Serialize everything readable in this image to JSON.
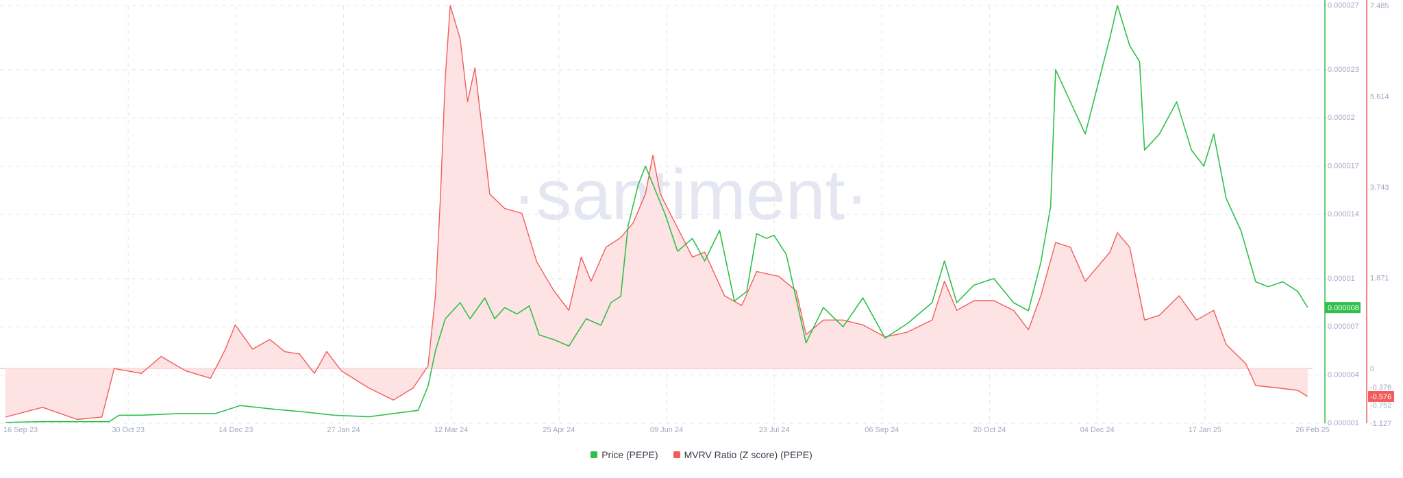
{
  "colors": {
    "price": "#2ec04a",
    "mvrv": "#f25c5c",
    "mvrv_fill": "#fde3e3",
    "grid": "#e3e5ec",
    "tick": "#9fa8c2",
    "watermark": "#e4e6f1"
  },
  "watermark": "·santiment·",
  "price_badge": "0.000008",
  "mvrv_badge": "-0.576",
  "legend": [
    {
      "label": "Price (PEPE)",
      "color": "#2ec04a"
    },
    {
      "label": "MVRV Ratio (Z score) (PEPE)",
      "color": "#f25c5c"
    }
  ],
  "chart_data": {
    "type": "line",
    "title": "",
    "xlabel": "",
    "x_ticks": [
      "16 Sep 23",
      "30 Oct 23",
      "14 Dec 23",
      "27 Jan 24",
      "12 Mar 24",
      "25 Apr 24",
      "09 Jun 24",
      "23 Jul 24",
      "06 Sep 24",
      "20 Oct 24",
      "04 Dec 24",
      "17 Jan 25",
      "26 Feb 25"
    ],
    "x_range": [
      "2023-09-16",
      "2025-02-26"
    ],
    "y_left": {
      "label": "Price (PEPE)",
      "ticks": [
        "0.000027",
        "0.000023",
        "0.00002",
        "0.000017",
        "0.000014",
        "0.00001",
        "0.000007",
        "0.000004",
        "0.000001"
      ],
      "range": [
        1e-06,
        2.7e-05
      ]
    },
    "y_right": {
      "label": "MVRV Ratio (Z score) (PEPE)",
      "ticks": [
        "7.485",
        "5.614",
        "3.743",
        "1.871",
        "0",
        "-0.376",
        "-0.752",
        "-1.127"
      ],
      "range": [
        -1.127,
        7.485
      ]
    },
    "grid": true,
    "legend_position": "bottom",
    "series": [
      {
        "name": "Price (PEPE)",
        "axis": "left",
        "points": [
          [
            "2023-09-16",
            1.05e-06
          ],
          [
            "2023-10-01",
            1.1e-06
          ],
          [
            "2023-10-15",
            1.1e-06
          ],
          [
            "2023-10-28",
            1.1e-06
          ],
          [
            "2023-11-01",
            1.5e-06
          ],
          [
            "2023-11-10",
            1.5e-06
          ],
          [
            "2023-11-25",
            1.6e-06
          ],
          [
            "2023-12-10",
            1.6e-06
          ],
          [
            "2023-12-20",
            2.1e-06
          ],
          [
            "2024-01-01",
            1.9e-06
          ],
          [
            "2024-01-15",
            1.7e-06
          ],
          [
            "2024-01-27",
            1.5e-06
          ],
          [
            "2024-02-10",
            1.4e-06
          ],
          [
            "2024-02-25",
            1.7e-06
          ],
          [
            "2024-03-01",
            1.8e-06
          ],
          [
            "2024-03-05",
            3.3e-06
          ],
          [
            "2024-03-08",
            5.5e-06
          ],
          [
            "2024-03-12",
            7.5e-06
          ],
          [
            "2024-03-18",
            8.5e-06
          ],
          [
            "2024-03-22",
            7.5e-06
          ],
          [
            "2024-03-28",
            8.8e-06
          ],
          [
            "2024-04-01",
            7.5e-06
          ],
          [
            "2024-04-05",
            8.2e-06
          ],
          [
            "2024-04-10",
            7.8e-06
          ],
          [
            "2024-04-15",
            8.3e-06
          ],
          [
            "2024-04-19",
            6.5e-06
          ],
          [
            "2024-04-25",
            6.2e-06
          ],
          [
            "2024-05-01",
            5.8e-06
          ],
          [
            "2024-05-08",
            7.5e-06
          ],
          [
            "2024-05-14",
            7.1e-06
          ],
          [
            "2024-05-18",
            8.5e-06
          ],
          [
            "2024-05-22",
            8.9e-06
          ],
          [
            "2024-05-25",
            1.33e-05
          ],
          [
            "2024-05-29",
            1.58e-05
          ],
          [
            "2024-06-01",
            1.7e-05
          ],
          [
            "2024-06-05",
            1.55e-05
          ],
          [
            "2024-06-09",
            1.4e-05
          ],
          [
            "2024-06-14",
            1.17e-05
          ],
          [
            "2024-06-20",
            1.25e-05
          ],
          [
            "2024-06-25",
            1.11e-05
          ],
          [
            "2024-07-01",
            1.3e-05
          ],
          [
            "2024-07-07",
            8.6e-06
          ],
          [
            "2024-07-12",
            9.2e-06
          ],
          [
            "2024-07-16",
            1.28e-05
          ],
          [
            "2024-07-20",
            1.25e-05
          ],
          [
            "2024-07-23",
            1.27e-05
          ],
          [
            "2024-07-28",
            1.15e-05
          ],
          [
            "2024-08-05",
            6e-06
          ],
          [
            "2024-08-12",
            8.2e-06
          ],
          [
            "2024-08-20",
            7e-06
          ],
          [
            "2024-08-28",
            8.8e-06
          ],
          [
            "2024-09-06",
            6.3e-06
          ],
          [
            "2024-09-15",
            7.2e-06
          ],
          [
            "2024-09-25",
            8.5e-06
          ],
          [
            "2024-09-30",
            1.11e-05
          ],
          [
            "2024-10-05",
            8.5e-06
          ],
          [
            "2024-10-12",
            9.6e-06
          ],
          [
            "2024-10-20",
            1e-05
          ],
          [
            "2024-10-28",
            8.5e-06
          ],
          [
            "2024-11-03",
            8e-06
          ],
          [
            "2024-11-08",
            1.1e-05
          ],
          [
            "2024-11-12",
            1.45e-05
          ],
          [
            "2024-11-14",
            2.3e-05
          ],
          [
            "2024-11-20",
            2.1e-05
          ],
          [
            "2024-11-26",
            1.9e-05
          ],
          [
            "2024-12-01",
            2.2e-05
          ],
          [
            "2024-12-06",
            2.5e-05
          ],
          [
            "2024-12-09",
            2.7e-05
          ],
          [
            "2024-12-14",
            2.45e-05
          ],
          [
            "2024-12-18",
            2.35e-05
          ],
          [
            "2024-12-20",
            1.8e-05
          ],
          [
            "2024-12-26",
            1.9e-05
          ],
          [
            "2025-01-02",
            2.1e-05
          ],
          [
            "2025-01-08",
            1.8e-05
          ],
          [
            "2025-01-13",
            1.7e-05
          ],
          [
            "2025-01-17",
            1.9e-05
          ],
          [
            "2025-01-22",
            1.5e-05
          ],
          [
            "2025-01-28",
            1.3e-05
          ],
          [
            "2025-02-03",
            9.8e-06
          ],
          [
            "2025-02-08",
            9.5e-06
          ],
          [
            "2025-02-14",
            9.8e-06
          ],
          [
            "2025-02-20",
            9.2e-06
          ],
          [
            "2025-02-24",
            8.2e-06
          ]
        ]
      },
      {
        "name": "MVRV Ratio (Z score) (PEPE)",
        "axis": "right",
        "points": [
          [
            "2023-09-16",
            -1.0
          ],
          [
            "2023-10-01",
            -0.8
          ],
          [
            "2023-10-15",
            -1.05
          ],
          [
            "2023-10-25",
            -1.0
          ],
          [
            "2023-10-30",
            0.0
          ],
          [
            "2023-11-10",
            -0.1
          ],
          [
            "2023-11-18",
            0.25
          ],
          [
            "2023-11-28",
            -0.05
          ],
          [
            "2023-12-08",
            -0.2
          ],
          [
            "2023-12-14",
            0.4
          ],
          [
            "2023-12-18",
            0.9
          ],
          [
            "2023-12-25",
            0.4
          ],
          [
            "2024-01-01",
            0.6
          ],
          [
            "2024-01-07",
            0.35
          ],
          [
            "2024-01-13",
            0.3
          ],
          [
            "2024-01-19",
            -0.1
          ],
          [
            "2024-01-24",
            0.35
          ],
          [
            "2024-01-30",
            -0.05
          ],
          [
            "2024-02-10",
            -0.4
          ],
          [
            "2024-02-20",
            -0.65
          ],
          [
            "2024-02-28",
            -0.4
          ],
          [
            "2024-03-05",
            0.05
          ],
          [
            "2024-03-08",
            1.5
          ],
          [
            "2024-03-10",
            3.5
          ],
          [
            "2024-03-12",
            6.0
          ],
          [
            "2024-03-14",
            7.485
          ],
          [
            "2024-03-18",
            6.8
          ],
          [
            "2024-03-21",
            5.5
          ],
          [
            "2024-03-24",
            6.2
          ],
          [
            "2024-03-30",
            3.6
          ],
          [
            "2024-04-05",
            3.3
          ],
          [
            "2024-04-12",
            3.2
          ],
          [
            "2024-04-18",
            2.2
          ],
          [
            "2024-04-25",
            1.6
          ],
          [
            "2024-05-01",
            1.2
          ],
          [
            "2024-05-06",
            2.3
          ],
          [
            "2024-05-10",
            1.8
          ],
          [
            "2024-05-16",
            2.5
          ],
          [
            "2024-05-22",
            2.7
          ],
          [
            "2024-05-27",
            3.0
          ],
          [
            "2024-06-01",
            3.6
          ],
          [
            "2024-06-04",
            4.4
          ],
          [
            "2024-06-07",
            3.6
          ],
          [
            "2024-06-14",
            2.9
          ],
          [
            "2024-06-20",
            2.3
          ],
          [
            "2024-06-25",
            2.4
          ],
          [
            "2024-07-03",
            1.5
          ],
          [
            "2024-07-10",
            1.3
          ],
          [
            "2024-07-16",
            2.0
          ],
          [
            "2024-07-25",
            1.9
          ],
          [
            "2024-08-01",
            1.6
          ],
          [
            "2024-08-05",
            0.7
          ],
          [
            "2024-08-12",
            1.0
          ],
          [
            "2024-08-20",
            1.0
          ],
          [
            "2024-08-28",
            0.9
          ],
          [
            "2024-09-06",
            0.65
          ],
          [
            "2024-09-15",
            0.75
          ],
          [
            "2024-09-25",
            1.0
          ],
          [
            "2024-09-30",
            1.8
          ],
          [
            "2024-10-05",
            1.2
          ],
          [
            "2024-10-12",
            1.4
          ],
          [
            "2024-10-20",
            1.4
          ],
          [
            "2024-10-28",
            1.2
          ],
          [
            "2024-11-03",
            0.8
          ],
          [
            "2024-11-08",
            1.5
          ],
          [
            "2024-11-14",
            2.6
          ],
          [
            "2024-11-20",
            2.5
          ],
          [
            "2024-11-26",
            1.8
          ],
          [
            "2024-12-01",
            2.1
          ],
          [
            "2024-12-06",
            2.4
          ],
          [
            "2024-12-09",
            2.8
          ],
          [
            "2024-12-14",
            2.5
          ],
          [
            "2024-12-20",
            1.0
          ],
          [
            "2024-12-26",
            1.1
          ],
          [
            "2025-01-03",
            1.5
          ],
          [
            "2025-01-10",
            1.0
          ],
          [
            "2025-01-17",
            1.2
          ],
          [
            "2025-01-22",
            0.5
          ],
          [
            "2025-01-30",
            0.1
          ],
          [
            "2025-02-03",
            -0.35
          ],
          [
            "2025-02-12",
            -0.4
          ],
          [
            "2025-02-20",
            -0.45
          ],
          [
            "2025-02-24",
            -0.576
          ]
        ]
      }
    ]
  }
}
